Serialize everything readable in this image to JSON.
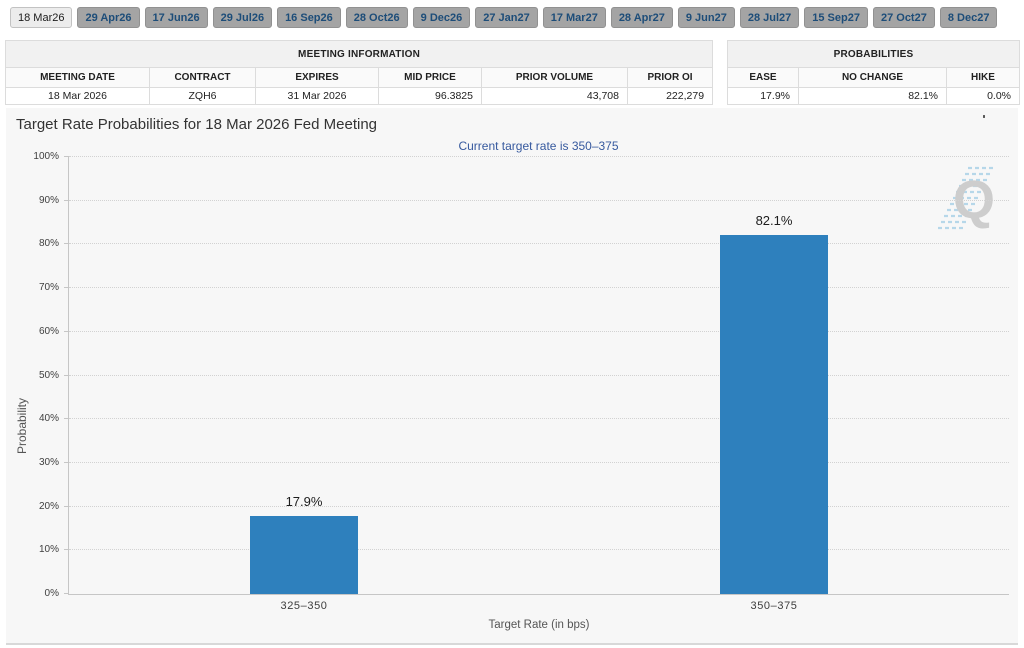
{
  "tabs": {
    "items": [
      {
        "label": "18 Mar26",
        "active": true
      },
      {
        "label": "29 Apr26",
        "active": false
      },
      {
        "label": "17 Jun26",
        "active": false
      },
      {
        "label": "29 Jul26",
        "active": false
      },
      {
        "label": "16 Sep26",
        "active": false
      },
      {
        "label": "28 Oct26",
        "active": false
      },
      {
        "label": "9 Dec26",
        "active": false
      },
      {
        "label": "27 Jan27",
        "active": false
      },
      {
        "label": "17 Mar27",
        "active": false
      },
      {
        "label": "28 Apr27",
        "active": false
      },
      {
        "label": "9 Jun27",
        "active": false
      },
      {
        "label": "28 Jul27",
        "active": false
      },
      {
        "label": "15 Sep27",
        "active": false
      },
      {
        "label": "27 Oct27",
        "active": false
      },
      {
        "label": "8 Dec27",
        "active": false
      }
    ]
  },
  "meeting_info": {
    "title": "MEETING INFORMATION",
    "columns": [
      "MEETING DATE",
      "CONTRACT",
      "EXPIRES",
      "MID PRICE",
      "PRIOR VOLUME",
      "PRIOR OI"
    ],
    "row": [
      "18 Mar 2026",
      "ZQH6",
      "31 Mar 2026",
      "96.3825",
      "43,708",
      "222,279"
    ]
  },
  "probabilities": {
    "title": "PROBABILITIES",
    "columns": [
      "EASE",
      "NO CHANGE",
      "HIKE"
    ],
    "row": [
      "17.9%",
      "82.1%",
      "0.0%"
    ]
  },
  "chart": {
    "title": "Target Rate Probabilities for 18 Mar 2026 Fed Meeting",
    "subtitle": "Current target rate is 350–375",
    "watermark_letter": "Q"
  },
  "chart_data": {
    "type": "bar",
    "categories": [
      "325–350",
      "350–375"
    ],
    "values": [
      17.9,
      82.1
    ],
    "value_labels": [
      "17.9%",
      "82.1%"
    ],
    "title": "Target Rate Probabilities for 18 Mar 2026 Fed Meeting",
    "subtitle": "Current target rate is 350–375",
    "xlabel": "Target Rate (in bps)",
    "ylabel": "Probability",
    "ylim": [
      0,
      100
    ],
    "ytick_labels": [
      "0%",
      "10%",
      "20%",
      "30%",
      "40%",
      "50%",
      "60%",
      "70%",
      "80%",
      "90%",
      "100%"
    ],
    "grid": true,
    "legend": "none",
    "bar_color": "#2e80bd"
  },
  "colors": {
    "bar_blue": "#2e80bd",
    "subtitle_blue": "#36599e",
    "tab_text_blue": "#1d4d79",
    "tab_inactive_bg": "#a4a4a4",
    "chart_bg": "#f7f7f7"
  }
}
